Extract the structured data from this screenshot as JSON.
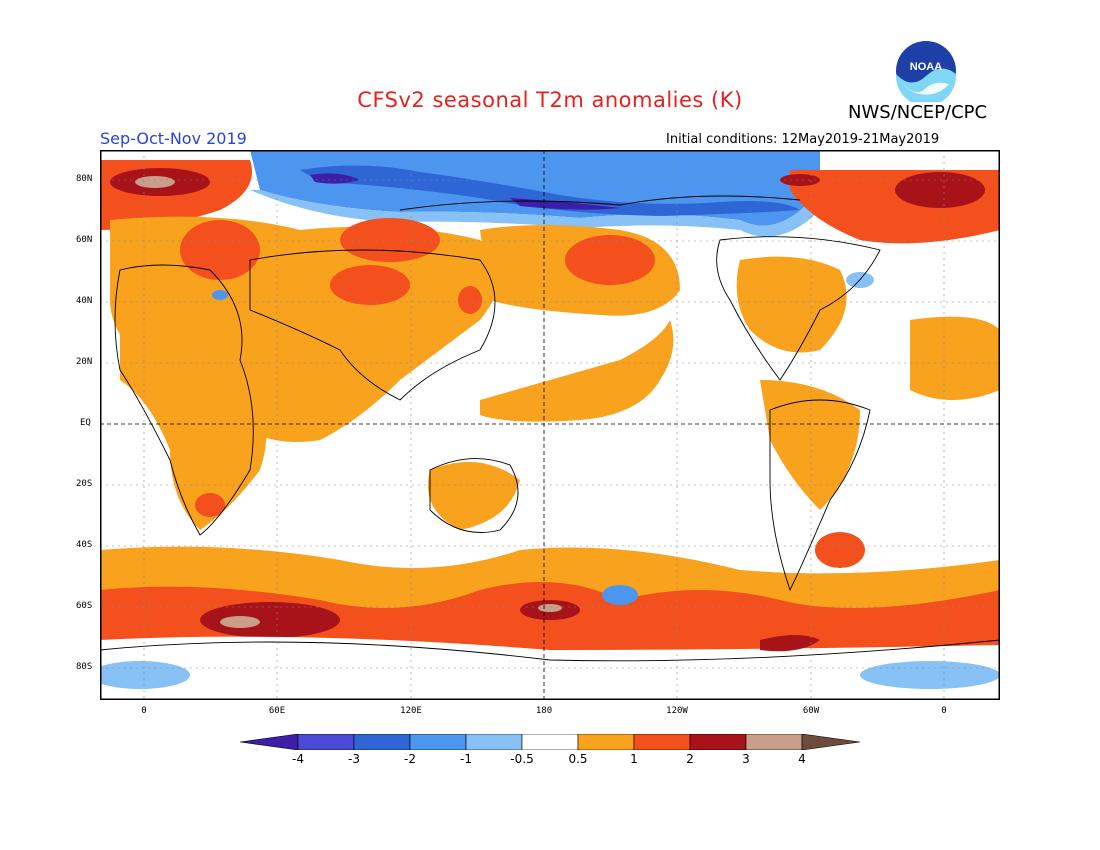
{
  "title": "CFSv2 seasonal T2m anomalies (K)",
  "organization": "NWS/NCEP/CPC",
  "logo_text": "NOAA",
  "season": "Sep-Oct-Nov 2019",
  "initial_conditions": "Initial conditions: 12May2019-21May2019",
  "latitude_labels": [
    "80N",
    "60N",
    "40N",
    "20N",
    "EQ",
    "20S",
    "40S",
    "60S",
    "80S"
  ],
  "longitude_labels": [
    "0",
    "60E",
    "120E",
    "180",
    "120W",
    "60W",
    "0"
  ],
  "colorbar": {
    "labels": [
      "-4",
      "-3",
      "-2",
      "-1",
      "-0.5",
      "0.5",
      "1",
      "2",
      "3",
      "4"
    ],
    "colors": [
      "#3c1ea8",
      "#4a4ad6",
      "#2e66d6",
      "#4d96ef",
      "#87c1f5",
      "#ffffff",
      "#f9a21e",
      "#f4501e",
      "#a8131a",
      "#c99e8a",
      "#6e4b3c"
    ]
  },
  "palette": {
    "cold_light": "#87c1f5",
    "cold_mid": "#4d96ef",
    "cold_deep": "#2e66d6",
    "cold_extreme": "#3c1ea8",
    "warm_light": "#f9a21e",
    "warm_mid": "#f4501e",
    "warm_deep": "#a8131a",
    "warm_extreme": "#c99e8a"
  }
}
